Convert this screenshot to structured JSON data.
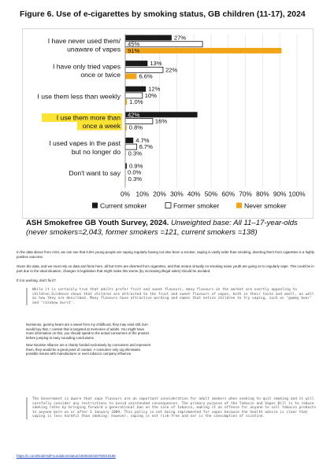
{
  "figure_title": "Figure 6. Use of e-cigarettes by smoking status, GB children (11-17), 2024",
  "chart_data": {
    "type": "bar",
    "orientation": "horizontal",
    "categories": [
      [
        "I have never used them/",
        "unaware of vapes"
      ],
      [
        "I have only tried vapes",
        "once or twice"
      ],
      [
        "I use them less than weekly"
      ],
      [
        "I use them more than",
        "once a week"
      ],
      [
        "I used vapes in the past",
        "but no longer do"
      ],
      [
        "Don't want to say"
      ]
    ],
    "highlighted_category_index": 3,
    "series": [
      {
        "name": "Current smoker",
        "color": "#1a1a1a",
        "values": [
          27,
          13,
          12,
          42,
          4.7,
          0.9
        ],
        "labels": [
          "27%",
          "13%",
          "12%",
          "42%",
          "4.7%",
          "0.9%"
        ]
      },
      {
        "name": "Former smoker",
        "color": "#ffffff",
        "values": [
          45,
          22,
          10,
          16,
          6.7,
          0.0
        ],
        "labels": [
          "45%",
          "22%",
          "10%",
          "16%",
          "6.7%",
          "0.0%"
        ]
      },
      {
        "name": "Never smoker",
        "color": "#f2a418",
        "values": [
          91,
          6.6,
          1.0,
          0.8,
          0.3,
          0.3
        ],
        "labels": [
          "91%",
          "6.6%",
          "1.0%",
          "0.8%",
          "0.3%",
          "0.3%"
        ]
      }
    ],
    "x_ticks": [
      "0%",
      "10%",
      "20%",
      "30%",
      "40%",
      "50%",
      "60%",
      "70%",
      "80%",
      "90%",
      "100%"
    ],
    "xlim": [
      0,
      100
    ],
    "grid": true,
    "legend_position": "bottom"
  },
  "caption": {
    "source_bold": "ASH Smokefree GB Youth Survey, 2024.",
    "note_italic": "Unweighted base: All 11–17-year-olds (never smokers=2,043, former smokers =121, current smokers =138)"
  },
  "body": {
    "p1": "In the data above from ASH, we can see that 0.8% young people are vaping regularly having not also been a smoker, vaping is vastly safer than smoking, diverting them from cigarettes is a highly positive outcome.",
    "p2": "Given the data, and we must rely on data and facts here, all but 0.8% are diverted from cigarettes, and that means virtually no smoking naive youth are going on to regularly vape. This could be in part due to the ideal situation, changes in legislation that might make this worse (by increasing illegal sales) should be avoided.",
    "p3": "If it is working, don't fix it?",
    "quote1": "While it is certainly true that adults prefer fruit and sweet flavours, many flavours on the market are overtly appealing to children.Evidence shows that children are attracted to the fruit and sweet flavours of vapes, both in their taste and smell, as well as how they are described. Many flavours have attractive wording and names that entice children to try vaping, such as ‘gummy bear’ and ‘rainbow burst’.",
    "p4": "Nonsense, gummy bears are a sweet from my childhood, they may exist still, but I would buy that, I contest that is targeted at memories of adults. You might have more information on this, you should speak to the actual consumers of the product before jumping to easy sounding conclusions.",
    "p5": "New Nicotine Alliance are a charity funded exclusively by consumers and represent them, they would be a great point of contact. A consumer only org eliminates possible issues with manufacturer or even tobacco company influence.",
    "quote2": "The Government is aware that vape flavours are an important consideration for adult smokers when seeking to quit smoking and it will carefully consider any restrictions to avoid unintended consequences. The primary purpose of the Tobacco and Vapes Bill is to reduce smoking rates by bringing forward a generational ban on the sale of tobacco, making it an offence for anyone to sell tobacco products to anyone born on or after 1 January 2009. This policy is not being implemented for vapes because the health advice is clear that vaping is less harmful than smoking: however, vaping is not risk-free and nor is the consumption of nicotine.",
    "link": "https://x.com/NoahHolFoundation/status/1829150348780019186"
  }
}
